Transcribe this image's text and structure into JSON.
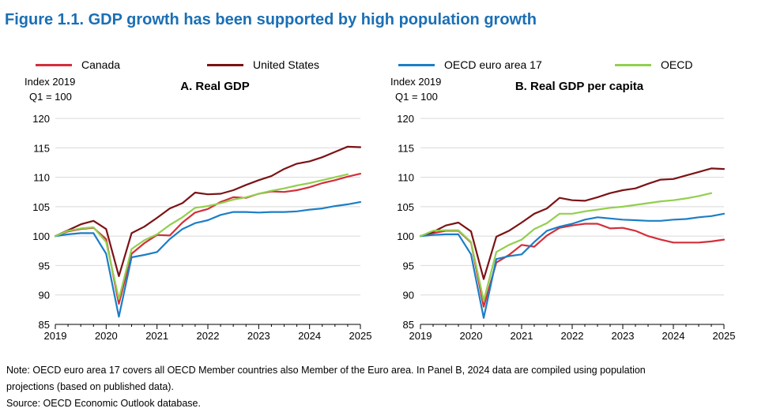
{
  "title": "Figure 1.1. GDP growth has been supported by high population growth",
  "legend": [
    {
      "label": "Canada",
      "color": "#d32f3a"
    },
    {
      "label": "United States",
      "color": "#7b1316"
    },
    {
      "label": "OECD euro area 17",
      "color": "#1c7ec6"
    },
    {
      "label": "OECD",
      "color": "#92cf4e"
    }
  ],
  "chart_data": [
    {
      "type": "line",
      "title": "A. Real GDP",
      "ylabel_line1": "Index 2019",
      "ylabel_line2": "Q1 = 100",
      "ylim": [
        85,
        120
      ],
      "yticks": [
        85,
        90,
        95,
        100,
        105,
        110,
        115,
        120
      ],
      "xlim": [
        2019,
        2025
      ],
      "xticks": [
        2019,
        2020,
        2021,
        2022,
        2023,
        2024,
        2025
      ],
      "x": [
        2019.0,
        2019.25,
        2019.5,
        2019.75,
        2020.0,
        2020.25,
        2020.5,
        2020.75,
        2021.0,
        2021.25,
        2021.5,
        2021.75,
        2022.0,
        2022.25,
        2022.5,
        2022.75,
        2023.0,
        2023.25,
        2023.5,
        2023.75,
        2024.0,
        2024.25,
        2024.5,
        2024.75,
        2025.0
      ],
      "series": [
        {
          "name": "Canada",
          "color": "#d32f3a",
          "values": [
            100,
            100.8,
            101.2,
            101.4,
            99.5,
            88.5,
            97.0,
            98.8,
            100.2,
            100.1,
            102.3,
            104.0,
            104.6,
            105.8,
            106.6,
            106.5,
            107.2,
            107.6,
            107.5,
            107.8,
            108.3,
            109.0,
            109.5,
            110.1,
            110.6
          ]
        },
        {
          "name": "United States",
          "color": "#7b1316",
          "values": [
            100,
            101.0,
            102.0,
            102.6,
            101.2,
            93.2,
            100.5,
            101.6,
            103.1,
            104.7,
            105.6,
            107.4,
            107.1,
            107.2,
            107.8,
            108.7,
            109.5,
            110.2,
            111.4,
            112.3,
            112.7,
            113.4,
            114.3,
            115.2,
            115.1
          ]
        },
        {
          "name": "OECD euro area 17",
          "color": "#1c7ec6",
          "values": [
            100,
            100.3,
            100.5,
            100.5,
            97.0,
            86.3,
            96.4,
            96.8,
            97.3,
            99.5,
            101.2,
            102.2,
            102.7,
            103.6,
            104.1,
            104.1,
            104.0,
            104.1,
            104.1,
            104.2,
            104.5,
            104.7,
            105.1,
            105.4,
            105.8
          ]
        },
        {
          "name": "OECD",
          "color": "#92cf4e",
          "values": [
            100,
            100.9,
            101.3,
            101.5,
            99.0,
            89.3,
            97.8,
            99.3,
            100.3,
            101.9,
            103.2,
            104.8,
            105.1,
            105.6,
            106.2,
            106.6,
            107.2,
            107.7,
            108.1,
            108.6,
            109.0,
            109.5,
            110.0,
            110.5,
            null
          ]
        }
      ]
    },
    {
      "type": "line",
      "title": "B. Real GDP per capita",
      "ylabel_line1": "Index 2019",
      "ylabel_line2": "Q1 = 100",
      "ylim": [
        85,
        120
      ],
      "yticks": [
        85,
        90,
        95,
        100,
        105,
        110,
        115,
        120
      ],
      "xlim": [
        2019,
        2025
      ],
      "xticks": [
        2019,
        2020,
        2021,
        2022,
        2023,
        2024,
        2025
      ],
      "x": [
        2019.0,
        2019.25,
        2019.5,
        2019.75,
        2020.0,
        2020.25,
        2020.5,
        2020.75,
        2021.0,
        2021.25,
        2021.5,
        2021.75,
        2022.0,
        2022.25,
        2022.5,
        2022.75,
        2023.0,
        2023.25,
        2023.5,
        2023.75,
        2024.0,
        2024.25,
        2024.5,
        2024.75,
        2025.0
      ],
      "series": [
        {
          "name": "Canada",
          "color": "#d32f3a",
          "values": [
            100,
            100.5,
            100.9,
            100.9,
            98.9,
            88.0,
            95.5,
            96.8,
            98.5,
            98.2,
            100.1,
            101.4,
            101.8,
            102.1,
            102.1,
            101.3,
            101.4,
            100.9,
            100.0,
            99.4,
            98.9,
            98.9,
            98.9,
            99.1,
            99.4
          ]
        },
        {
          "name": "United States",
          "color": "#7b1316",
          "values": [
            100,
            100.7,
            101.8,
            102.3,
            100.8,
            92.7,
            99.9,
            100.9,
            102.3,
            103.8,
            104.7,
            106.5,
            106.1,
            106.0,
            106.6,
            107.3,
            107.8,
            108.1,
            108.9,
            109.6,
            109.7,
            110.3,
            110.9,
            111.5,
            111.4
          ]
        },
        {
          "name": "OECD euro area 17",
          "color": "#1c7ec6",
          "values": [
            100,
            100.2,
            100.3,
            100.3,
            96.9,
            86.1,
            96.1,
            96.6,
            96.9,
            99.0,
            100.9,
            101.6,
            102.1,
            102.8,
            103.2,
            103.0,
            102.8,
            102.7,
            102.6,
            102.6,
            102.8,
            102.9,
            103.2,
            103.4,
            103.8
          ]
        },
        {
          "name": "OECD",
          "color": "#92cf4e",
          "values": [
            100,
            100.9,
            101.0,
            101.0,
            99.0,
            89.0,
            97.3,
            98.5,
            99.4,
            101.2,
            102.2,
            103.8,
            103.8,
            104.2,
            104.5,
            104.8,
            105.0,
            105.3,
            105.6,
            105.9,
            106.1,
            106.4,
            106.8,
            107.3,
            null
          ]
        }
      ]
    }
  ],
  "notes": {
    "line1": "Note: OECD euro area 17 covers all OECD Member countries also Member of the Euro area. In Panel B, 2024 data are compiled using population",
    "line2": "projections (based on published data).",
    "line3": "Source: OECD Economic Outlook database."
  }
}
